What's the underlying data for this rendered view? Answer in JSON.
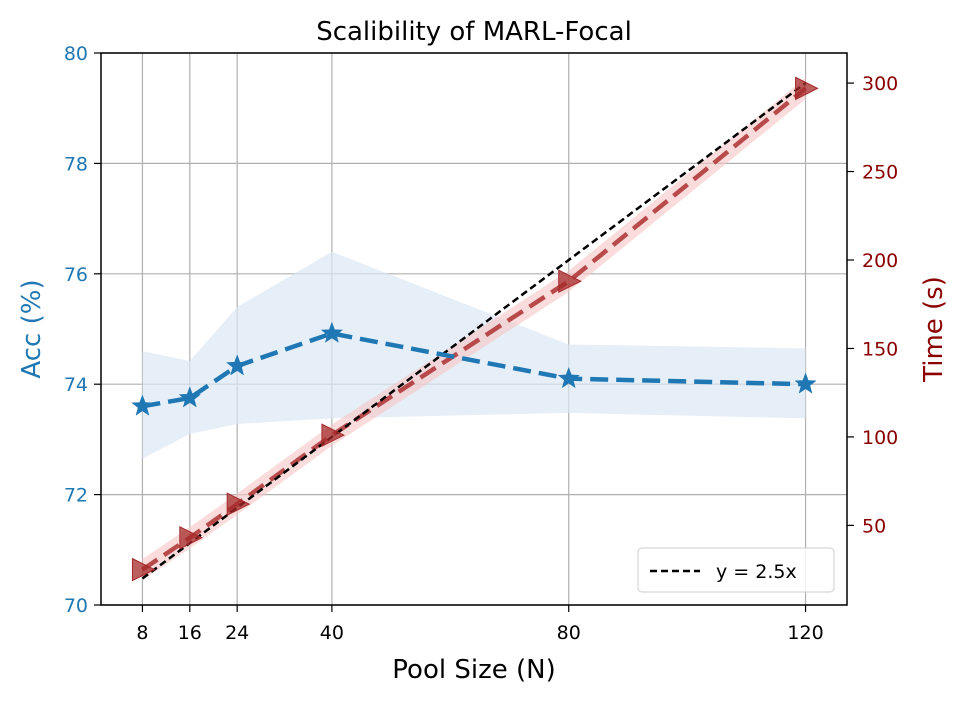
{
  "chart_data": {
    "type": "line",
    "title": "Scalibility of MARL-Focal",
    "xlabel": "Pool Size (N)",
    "ylabel_left": "Acc (%)",
    "ylabel_right": "Time (s)",
    "x": [
      8,
      16,
      24,
      40,
      80,
      120
    ],
    "xlim": [
      1,
      127
    ],
    "ylim_left": [
      70,
      80
    ],
    "ylim_right": [
      5,
      317
    ],
    "xticks": [
      "8",
      "16",
      "24",
      "40",
      "80",
      "120"
    ],
    "yticks_left": [
      "70",
      "72",
      "74",
      "76",
      "78",
      "80"
    ],
    "yticks_right": [
      "50",
      "100",
      "150",
      "200",
      "250",
      "300"
    ],
    "grid": true,
    "legend_position": "bottom-right",
    "colors": {
      "acc": "#1f77b4",
      "acc_band": "#dbe8f5",
      "time": "#b03a3a",
      "time_marker": "#a52a2a",
      "time_band": "#f7c4c4",
      "right_axis": "#8b0000",
      "ref": "#000000"
    },
    "series": [
      {
        "name": "Acc (%)",
        "axis": "left",
        "marker": "star",
        "values": [
          73.6,
          73.75,
          74.33,
          74.92,
          74.1,
          74.0
        ],
        "lower": [
          72.65,
          73.1,
          73.28,
          73.38,
          73.48,
          73.38
        ],
        "upper": [
          74.6,
          74.42,
          75.4,
          76.4,
          74.72,
          74.65
        ]
      },
      {
        "name": "Time (s)",
        "axis": "right",
        "marker": "triangle-right",
        "values": [
          25,
          43,
          62,
          101,
          188,
          297
        ],
        "lower": [
          19,
          37,
          56,
          95,
          182,
          291
        ],
        "upper": [
          31,
          49,
          68,
          107,
          194,
          303
        ]
      },
      {
        "name": "y = 2.5x",
        "axis": "right",
        "style": "dashed",
        "values": [
          20,
          40,
          60,
          100,
          200,
          300
        ]
      }
    ],
    "legend": [
      "y = 2.5x"
    ]
  }
}
